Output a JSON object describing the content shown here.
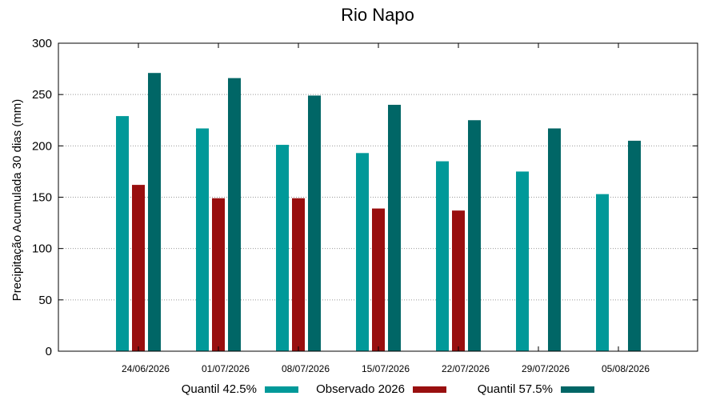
{
  "chart_data": {
    "type": "bar",
    "title": "Rio Napo",
    "xlabel": "",
    "ylabel": "Precipitação Acumulada 30 dias (mm)",
    "ylim": [
      0,
      300
    ],
    "yticks": [
      0,
      50,
      100,
      150,
      200,
      250,
      300
    ],
    "grid": true,
    "legend_position": "bottom",
    "categories": [
      "24/06/2026",
      "01/07/2026",
      "08/07/2026",
      "15/07/2026",
      "22/07/2026",
      "29/07/2026",
      "05/08/2026"
    ],
    "series": [
      {
        "name": "Quantil 42.5%",
        "color": "#009999",
        "values": [
          229,
          217,
          201,
          193,
          185,
          175,
          153
        ]
      },
      {
        "name": "Observado 2026",
        "color": "#990f0f",
        "values": [
          162,
          149,
          149,
          139,
          137,
          null,
          null
        ]
      },
      {
        "name": "Quantil 57.5%",
        "color": "#006666",
        "values": [
          271,
          266,
          249,
          240,
          225,
          217,
          205
        ]
      }
    ]
  }
}
